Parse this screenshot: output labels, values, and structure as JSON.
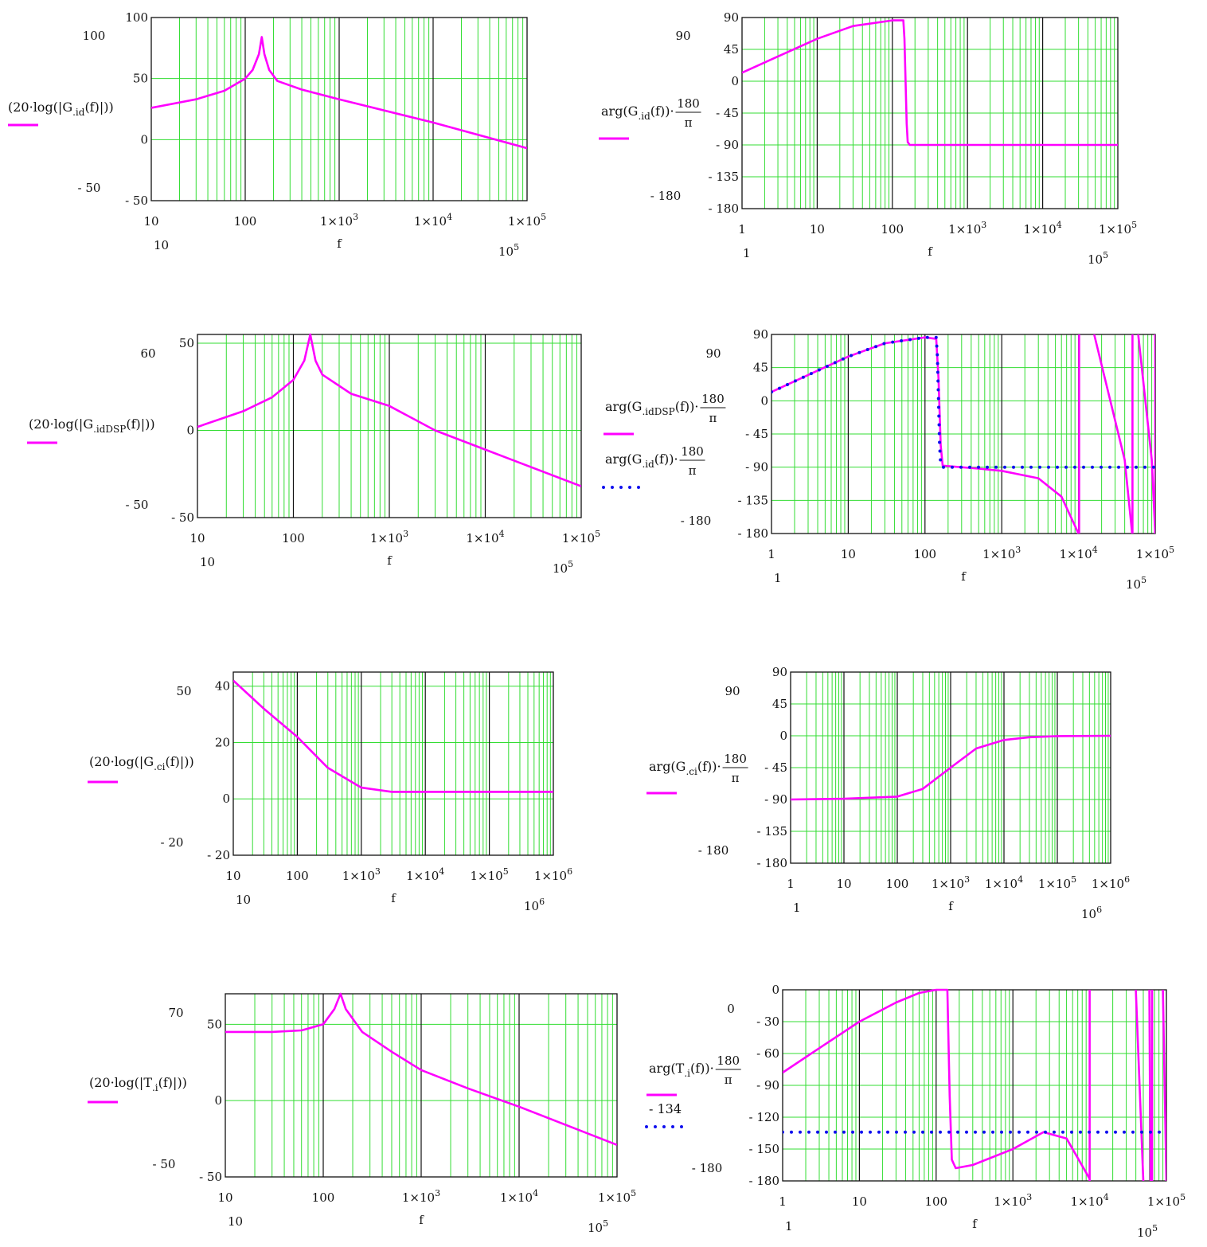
{
  "colors": {
    "grid": "#33dd33",
    "decade": "#111111",
    "frame": "#111111",
    "trace": "#ff00ff",
    "dotted": "#1010ee"
  },
  "chart_data": [
    {
      "type": "line",
      "xscale": "log",
      "xlim": [
        10,
        100000
      ],
      "ylim": [
        -50,
        100
      ],
      "yticks": [
        "100",
        "50",
        "0",
        "- 50"
      ],
      "xticks": [
        "10",
        "100",
        "1×10",
        "1×10",
        "1×10"
      ],
      "xtick_exponents": [
        "",
        "",
        "3",
        "4",
        "5"
      ],
      "ylabel": {
        "main": "(20·log(|G",
        "sub": ".id",
        "tail": "(f)|))"
      },
      "xlabel": "f",
      "axis_limit_text": {
        "y_top": "100",
        "y_bottom": "- 50",
        "x_left": "10",
        "x_right": "10",
        "x_right_exp": "5"
      },
      "series": [
        {
          "style": "solid",
          "points": [
            [
              10,
              26
            ],
            [
              30,
              33
            ],
            [
              60,
              40
            ],
            [
              100,
              50
            ],
            [
              120,
              57
            ],
            [
              140,
              70
            ],
            [
              150,
              84
            ],
            [
              160,
              70
            ],
            [
              180,
              57
            ],
            [
              220,
              48
            ],
            [
              400,
              41
            ],
            [
              1000,
              33
            ],
            [
              10000,
              14
            ],
            [
              100000,
              -7
            ]
          ]
        }
      ]
    },
    {
      "type": "line",
      "xscale": "log",
      "xlim": [
        1,
        100000
      ],
      "ylim": [
        -180,
        90
      ],
      "yticks": [
        "90",
        "45",
        "0",
        "- 45",
        "- 90",
        "- 135",
        "- 180"
      ],
      "xticks": [
        "1",
        "10",
        "100",
        "1×10",
        "1×10",
        "1×10"
      ],
      "xtick_exponents": [
        "",
        "",
        "",
        "3",
        "4",
        "5"
      ],
      "ylabel": {
        "main": "arg(G",
        "sub": ".id",
        "tail": "(f))·",
        "frac_num": "180",
        "frac_den": "π"
      },
      "xlabel": "f",
      "axis_limit_text": {
        "y_top": "90",
        "y_bottom": "- 180",
        "x_left": "1",
        "x_right": "10",
        "x_right_exp": "5"
      },
      "series": [
        {
          "style": "solid",
          "points": [
            [
              1,
              12
            ],
            [
              3,
              35
            ],
            [
              10,
              60
            ],
            [
              30,
              78
            ],
            [
              100,
              86
            ],
            [
              140,
              86
            ],
            [
              145,
              60
            ],
            [
              150,
              0
            ],
            [
              155,
              -60
            ],
            [
              160,
              -86
            ],
            [
              170,
              -90
            ],
            [
              100000,
              -90
            ]
          ]
        }
      ]
    },
    {
      "type": "line",
      "xscale": "log",
      "xlim": [
        10,
        100000
      ],
      "ylim": [
        -50,
        55
      ],
      "yticks": [
        "50",
        "0",
        "- 50"
      ],
      "xticks": [
        "10",
        "100",
        "1×10",
        "1×10",
        "1×10"
      ],
      "xtick_exponents": [
        "",
        "",
        "3",
        "4",
        "5"
      ],
      "ylabel": {
        "main": "(20·log(|G",
        "sub": ".idDSP",
        "tail": "(f)|))"
      },
      "xlabel": "f",
      "axis_limit_text": {
        "y_top": "60",
        "y_bottom": "- 50",
        "x_left": "10",
        "x_right": "10",
        "x_right_exp": "5"
      },
      "series": [
        {
          "style": "solid",
          "points": [
            [
              10,
              2
            ],
            [
              30,
              11
            ],
            [
              60,
              19
            ],
            [
              100,
              29
            ],
            [
              130,
              40
            ],
            [
              150,
              55
            ],
            [
              170,
              40
            ],
            [
              200,
              32
            ],
            [
              400,
              21
            ],
            [
              1000,
              14
            ],
            [
              3000,
              0
            ],
            [
              10000,
              -11
            ],
            [
              100000,
              -32
            ]
          ]
        }
      ]
    },
    {
      "type": "line",
      "xscale": "log",
      "xlim": [
        1,
        100000
      ],
      "ylim": [
        -180,
        90
      ],
      "yticks": [
        "90",
        "45",
        "0",
        "- 45",
        "- 90",
        "- 135",
        "- 180"
      ],
      "xticks": [
        "1",
        "10",
        "100",
        "1×10",
        "1×10",
        "1×10"
      ],
      "xtick_exponents": [
        "",
        "",
        "",
        "3",
        "4",
        "5"
      ],
      "ylabels": [
        {
          "main": "arg(G",
          "sub": ".idDSP",
          "tail": "(f))·",
          "frac_num": "180",
          "frac_den": "π"
        },
        {
          "main": "arg(G",
          "sub": ".id",
          "tail": "(f))·",
          "frac_num": "180",
          "frac_den": "π"
        }
      ],
      "xlabel": "f",
      "axis_limit_text": {
        "y_top": "90",
        "y_bottom": "- 180",
        "x_left": "1",
        "x_right": "10",
        "x_right_exp": "5"
      },
      "series": [
        {
          "style": "solid",
          "points": [
            [
              1,
              12
            ],
            [
              3,
              35
            ],
            [
              10,
              60
            ],
            [
              30,
              78
            ],
            [
              100,
              86
            ],
            [
              140,
              84
            ],
            [
              150,
              30
            ],
            [
              160,
              -60
            ],
            [
              170,
              -88
            ],
            [
              500,
              -92
            ],
            [
              1000,
              -95
            ],
            [
              3000,
              -105
            ],
            [
              6000,
              -130
            ],
            [
              10000,
              -180
            ]
          ],
          "extra_segments": [
            [
              [
                10200,
                -180
              ],
              [
                10200,
                90
              ]
            ],
            [
              [
                16000,
                90
              ],
              [
                40000,
                -80
              ],
              [
                50000,
                -180
              ]
            ],
            [
              [
                50500,
                -180
              ],
              [
                50500,
                90
              ]
            ],
            [
              [
                60000,
                90
              ],
              [
                90000,
                -80
              ],
              [
                100000,
                -180
              ]
            ],
            [
              [
                100000,
                -180
              ],
              [
                100000,
                90
              ]
            ]
          ]
        },
        {
          "style": "dotted",
          "points": [
            [
              1,
              12
            ],
            [
              3,
              35
            ],
            [
              10,
              60
            ],
            [
              30,
              78
            ],
            [
              100,
              86
            ],
            [
              140,
              86
            ],
            [
              145,
              60
            ],
            [
              150,
              0
            ],
            [
              155,
              -60
            ],
            [
              160,
              -86
            ],
            [
              170,
              -90
            ],
            [
              100000,
              -90
            ]
          ]
        }
      ]
    },
    {
      "type": "line",
      "xscale": "log",
      "xlim": [
        10,
        1000000
      ],
      "ylim": [
        -20,
        45
      ],
      "yticks": [
        "40",
        "20",
        "0",
        "- 20"
      ],
      "xticks": [
        "10",
        "100",
        "1×10",
        "1×10",
        "1×10",
        "1×10"
      ],
      "xtick_exponents": [
        "",
        "",
        "3",
        "4",
        "5",
        "6"
      ],
      "ylabel": {
        "main": "(20·log(|G",
        "sub": ".ci",
        "tail": "(f)|))"
      },
      "xlabel": "f",
      "axis_limit_text": {
        "y_top": "50",
        "y_bottom": "- 20",
        "x_left": "10",
        "x_right": "10",
        "x_right_exp": "6"
      },
      "series": [
        {
          "style": "solid",
          "points": [
            [
              10,
              42
            ],
            [
              30,
              32
            ],
            [
              100,
              22
            ],
            [
              300,
              11
            ],
            [
              1000,
              4
            ],
            [
              3000,
              2.5
            ],
            [
              10000,
              2.5
            ],
            [
              1000000,
              2.5
            ]
          ]
        }
      ]
    },
    {
      "type": "line",
      "xscale": "log",
      "xlim": [
        1,
        1000000
      ],
      "ylim": [
        -180,
        90
      ],
      "yticks": [
        "90",
        "45",
        "0",
        "- 45",
        "- 90",
        "- 135",
        "- 180"
      ],
      "xticks": [
        "1",
        "10",
        "100",
        "1×10",
        "1×10",
        "1×10",
        "1×10"
      ],
      "xtick_exponents": [
        "",
        "",
        "",
        "3",
        "4",
        "5",
        "6"
      ],
      "ylabel": {
        "main": "arg(G",
        "sub": ".ci",
        "tail": "(f))·",
        "frac_num": "180",
        "frac_den": "π"
      },
      "xlabel": "f",
      "axis_limit_text": {
        "y_top": "90",
        "y_bottom": "- 180",
        "x_left": "1",
        "x_right": "10",
        "x_right_exp": "6"
      },
      "series": [
        {
          "style": "solid",
          "points": [
            [
              1,
              -90
            ],
            [
              10,
              -89
            ],
            [
              100,
              -86
            ],
            [
              300,
              -75
            ],
            [
              1000,
              -45
            ],
            [
              3000,
              -18
            ],
            [
              10000,
              -6
            ],
            [
              30000,
              -2
            ],
            [
              100000,
              -0.5
            ],
            [
              1000000,
              0
            ]
          ]
        }
      ]
    },
    {
      "type": "line",
      "xscale": "log",
      "xlim": [
        10,
        100000
      ],
      "ylim": [
        -50,
        70
      ],
      "yticks": [
        "50",
        "0",
        "- 50"
      ],
      "xticks": [
        "10",
        "100",
        "1×10",
        "1×10",
        "1×10"
      ],
      "xtick_exponents": [
        "",
        "",
        "3",
        "4",
        "5"
      ],
      "ylabel": {
        "main": "(20·log(|T",
        "sub": ".i",
        "tail": "(f)|))"
      },
      "xlabel": "f",
      "axis_limit_text": {
        "y_top": "70",
        "y_bottom": "- 50",
        "x_left": "10",
        "x_right": "10",
        "x_right_exp": "5"
      },
      "series": [
        {
          "style": "solid",
          "points": [
            [
              10,
              45
            ],
            [
              30,
              45
            ],
            [
              60,
              46
            ],
            [
              100,
              50
            ],
            [
              130,
              60
            ],
            [
              150,
              70
            ],
            [
              170,
              60
            ],
            [
              250,
              45
            ],
            [
              500,
              32
            ],
            [
              1000,
              20
            ],
            [
              3000,
              8
            ],
            [
              10000,
              -4
            ],
            [
              100000,
              -29
            ]
          ]
        }
      ]
    },
    {
      "type": "line",
      "xscale": "log",
      "xlim": [
        1,
        100000
      ],
      "ylim": [
        -180,
        0
      ],
      "yticks": [
        "0",
        "- 30",
        "- 60",
        "- 90",
        "- 120",
        "- 150",
        "- 180"
      ],
      "xticks": [
        "1",
        "10",
        "100",
        "1×10",
        "1×10",
        "1×10"
      ],
      "xtick_exponents": [
        "",
        "",
        "",
        "3",
        "4",
        "5"
      ],
      "ylabels": [
        {
          "main": "arg(T",
          "sub": ".i",
          "tail": "(f))·",
          "frac_num": "180",
          "frac_den": "π"
        },
        {
          "main": "- 134"
        }
      ],
      "xlabel": "f",
      "axis_limit_text": {
        "y_top": "0",
        "y_bottom": "- 180",
        "x_left": "1",
        "x_right": "10",
        "x_right_exp": "5"
      },
      "series": [
        {
          "style": "solid",
          "points": [
            [
              1,
              -78
            ],
            [
              3,
              -55
            ],
            [
              10,
              -30
            ],
            [
              30,
              -12
            ],
            [
              60,
              -3
            ],
            [
              100,
              0
            ],
            [
              140,
              0
            ],
            [
              150,
              -100
            ],
            [
              160,
              -160
            ],
            [
              180,
              -168
            ],
            [
              300,
              -165
            ],
            [
              1000,
              -150
            ],
            [
              2500,
              -134
            ],
            [
              5000,
              -140
            ],
            [
              10000,
              -178
            ]
          ],
          "extra_segments": [
            [
              [
                10000,
                -180
              ],
              [
                10000,
                0
              ]
            ],
            [
              [
                40000,
                0
              ],
              [
                50000,
                -180
              ]
            ],
            [
              [
                60000,
                0
              ],
              [
                62000,
                -180
              ]
            ],
            [
              [
                65000,
                -180
              ],
              [
                65000,
                0
              ]
            ],
            [
              [
                90000,
                0
              ],
              [
                100000,
                -180
              ]
            ]
          ]
        },
        {
          "style": "dotted",
          "points": [
            [
              1,
              -134
            ],
            [
              100000,
              -134
            ]
          ]
        }
      ]
    }
  ]
}
